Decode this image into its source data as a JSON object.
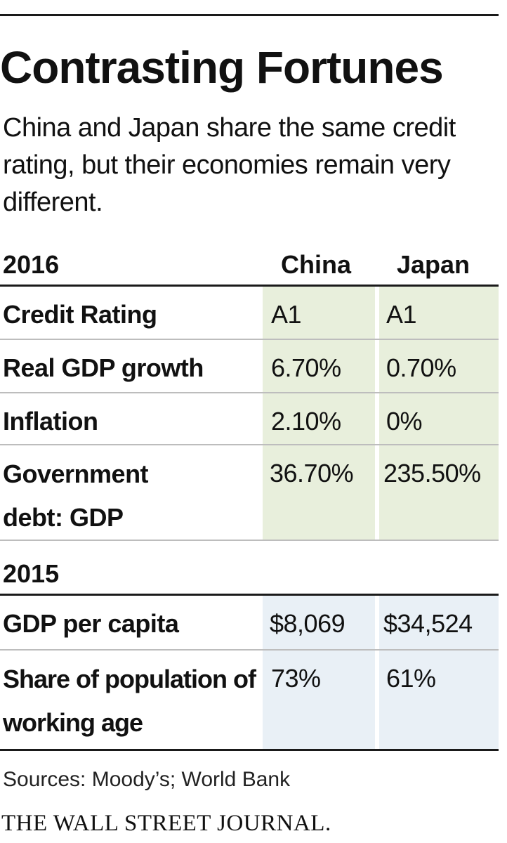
{
  "title": "Contrasting Fortunes",
  "subtitle": "China and Japan share the same credit rating, but their economies remain very different.",
  "colors": {
    "section_2016_fill": "#e8efdc",
    "section_2015_fill": "#e9f0f6",
    "rule": "#1a1a1a"
  },
  "chart_data": {
    "type": "table",
    "columns": [
      "China",
      "Japan"
    ],
    "sections": [
      {
        "year": "2016",
        "rows": [
          {
            "label": "Credit Rating",
            "china": "A1",
            "japan": "A1"
          },
          {
            "label": "Real GDP growth",
            "china": "6.70%",
            "japan": "0.70%"
          },
          {
            "label": "Inflation",
            "china": "2.10%",
            "japan": "0%"
          },
          {
            "label": "Government debt: GDP",
            "china": "36.70%",
            "japan": "235.50%"
          }
        ]
      },
      {
        "year": "2015",
        "rows": [
          {
            "label": "GDP per capita",
            "china": "$8,069",
            "japan": "$34,524"
          },
          {
            "label": "Share of population of working age",
            "china": "73%",
            "japan": "61%"
          }
        ]
      }
    ]
  },
  "source": "Sources: Moody’s; World Bank",
  "brand": "THE WALL STREET JOURNAL."
}
